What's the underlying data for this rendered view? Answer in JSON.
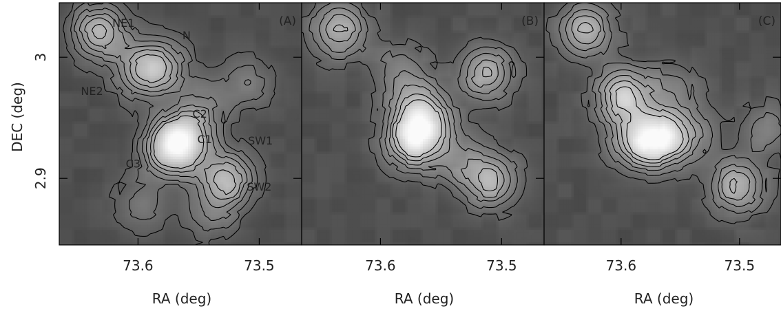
{
  "chart_data": [
    {
      "type": "heatmap",
      "panel_label": "(A)",
      "xlabel": "RA (deg)",
      "ylabel": "DEC (deg)",
      "xticks": [
        73.6,
        73.5
      ],
      "yticks": [
        3,
        2.9
      ],
      "xlim": [
        73.665,
        73.465
      ],
      "ylim": [
        2.845,
        3.045
      ],
      "colormap": "grayscale",
      "contour_color": "#000000",
      "peaks": [
        {
          "x": 73.632,
          "y": 3.021,
          "v": 5
        },
        {
          "x": 73.597,
          "y": 2.988,
          "v": 4
        },
        {
          "x": 73.578,
          "y": 2.994,
          "v": 3
        },
        {
          "x": 73.563,
          "y": 2.932,
          "v": 6
        },
        {
          "x": 73.575,
          "y": 2.923,
          "v": 4
        },
        {
          "x": 73.527,
          "y": 2.899,
          "v": 5
        },
        {
          "x": 73.508,
          "y": 2.98,
          "v": 2
        },
        {
          "x": 73.545,
          "y": 2.96,
          "v": 2
        },
        {
          "x": 73.596,
          "y": 2.878,
          "v": 2
        },
        {
          "x": 73.541,
          "y": 2.87,
          "v": 2
        }
      ],
      "annotations": [
        {
          "text": "NE1",
          "x": 73.612,
          "y": 3.025
        },
        {
          "text": "N",
          "x": 73.56,
          "y": 3.015
        },
        {
          "text": "NE2",
          "x": 73.638,
          "y": 2.969
        },
        {
          "text": "C2",
          "x": 73.549,
          "y": 2.95
        },
        {
          "text": "C1",
          "x": 73.545,
          "y": 2.929
        },
        {
          "text": "SW1",
          "x": 73.499,
          "y": 2.928
        },
        {
          "text": "C3",
          "x": 73.604,
          "y": 2.909
        },
        {
          "text": "SW2",
          "x": 73.5,
          "y": 2.89
        }
      ]
    },
    {
      "type": "heatmap",
      "panel_label": "(B)",
      "xlabel": "RA (deg)",
      "ylabel": "",
      "xticks": [
        73.6,
        73.5
      ],
      "yticks": [],
      "xlim": [
        73.665,
        73.465
      ],
      "ylim": [
        2.845,
        3.045
      ],
      "colormap": "grayscale",
      "contour_color": "#000000",
      "peaks": [
        {
          "x": 73.634,
          "y": 3.022,
          "v": 4
        },
        {
          "x": 73.57,
          "y": 2.96,
          "v": 3
        },
        {
          "x": 73.574,
          "y": 2.93,
          "v": 5
        },
        {
          "x": 73.561,
          "y": 2.946,
          "v": 3
        },
        {
          "x": 73.513,
          "y": 2.987,
          "v": 4
        },
        {
          "x": 73.509,
          "y": 2.898,
          "v": 4
        },
        {
          "x": 73.583,
          "y": 2.991,
          "v": 2
        },
        {
          "x": 73.537,
          "y": 2.915,
          "v": 2
        }
      ],
      "annotations": []
    },
    {
      "type": "heatmap",
      "panel_label": "(C)",
      "xlabel": "RA (deg)",
      "ylabel": "",
      "xticks": [
        73.6,
        73.5
      ],
      "yticks": [],
      "xlim": [
        73.665,
        73.465
      ],
      "ylim": [
        2.845,
        3.045
      ],
      "colormap": "grayscale",
      "contour_color": "#000000",
      "peaks": [
        {
          "x": 73.63,
          "y": 3.022,
          "v": 4
        },
        {
          "x": 73.598,
          "y": 2.968,
          "v": 5
        },
        {
          "x": 73.557,
          "y": 2.975,
          "v": 2
        },
        {
          "x": 73.568,
          "y": 2.932,
          "v": 6
        },
        {
          "x": 73.59,
          "y": 2.93,
          "v": 3
        },
        {
          "x": 73.54,
          "y": 2.936,
          "v": 2
        },
        {
          "x": 73.502,
          "y": 2.893,
          "v": 4
        },
        {
          "x": 73.478,
          "y": 2.94,
          "v": 2
        }
      ],
      "annotations": []
    }
  ]
}
